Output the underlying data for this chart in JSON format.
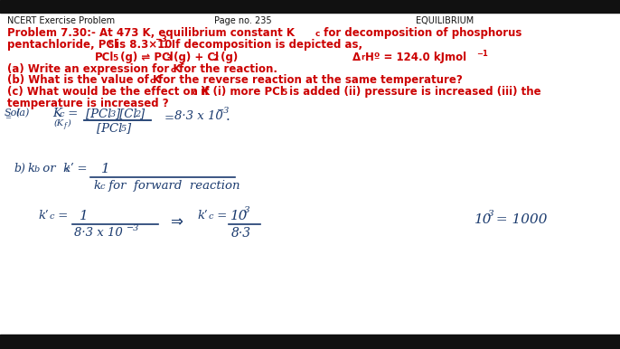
{
  "bg_color": "#ffffff",
  "header_color": "#111111",
  "red_color": "#cc0000",
  "blue_color": "#1a3a6e",
  "top_bar_color": "#111111",
  "bottom_bar_color": "#111111",
  "fig_w": 6.86,
  "fig_h": 3.86,
  "dpi": 100
}
